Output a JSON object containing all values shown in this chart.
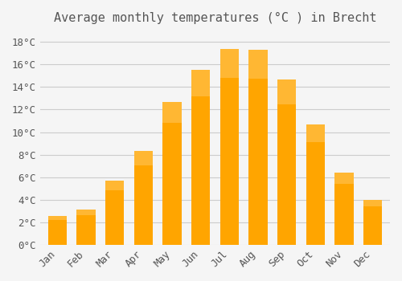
{
  "title": "Average monthly temperatures (°C ) in Brecht",
  "months": [
    "Jan",
    "Feb",
    "Mar",
    "Apr",
    "May",
    "Jun",
    "Jul",
    "Aug",
    "Sep",
    "Oct",
    "Nov",
    "Dec"
  ],
  "values": [
    2.6,
    3.1,
    5.7,
    8.3,
    12.7,
    15.5,
    17.4,
    17.3,
    14.7,
    10.7,
    6.4,
    4.0
  ],
  "bar_color": "#FFA500",
  "bar_color_gradient_top": "#FFB733",
  "background_color": "#F5F5F5",
  "grid_color": "#CCCCCC",
  "text_color": "#555555",
  "ylim": [
    0,
    19
  ],
  "ytick_step": 2,
  "title_fontsize": 11,
  "tick_fontsize": 9
}
